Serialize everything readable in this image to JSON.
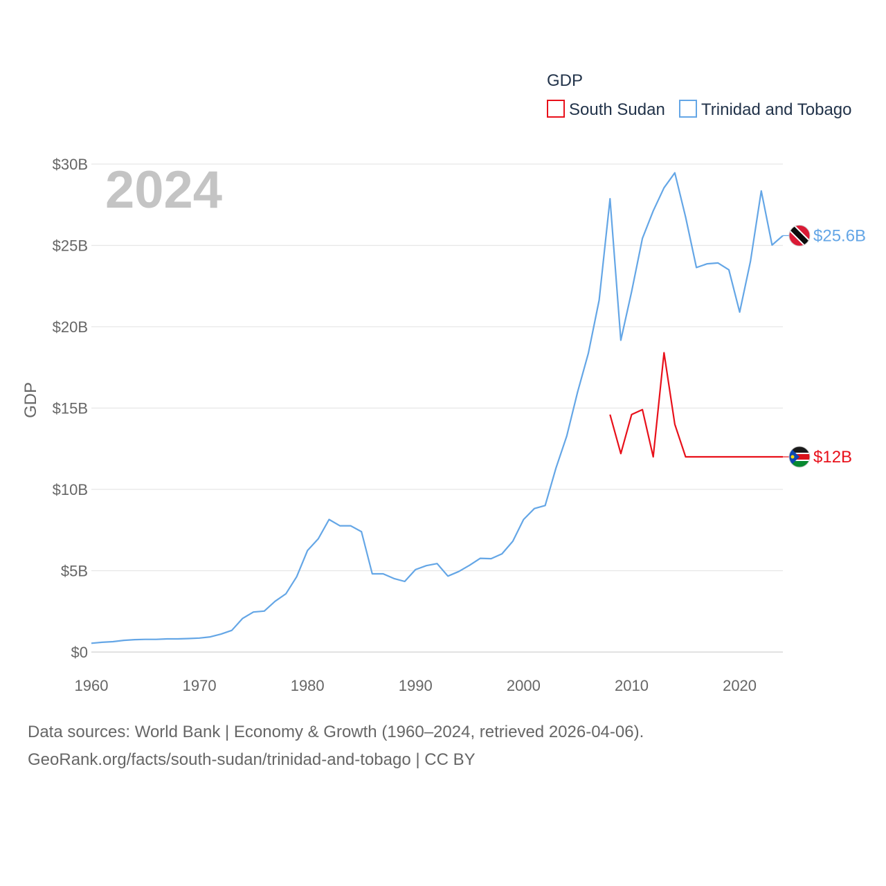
{
  "chart_data": {
    "type": "line",
    "big_year": "2024",
    "ylabel": "GDP",
    "ylim": [
      0,
      30000000000
    ],
    "xlim": [
      1960,
      2024
    ],
    "y_ticks": [
      {
        "value": 0,
        "label": "$0"
      },
      {
        "value": 5000000000,
        "label": "$5B"
      },
      {
        "value": 10000000000,
        "label": "$10B"
      },
      {
        "value": 15000000000,
        "label": "$15B"
      },
      {
        "value": 20000000000,
        "label": "$20B"
      },
      {
        "value": 25000000000,
        "label": "$25B"
      },
      {
        "value": 30000000000,
        "label": "$30B"
      }
    ],
    "x_ticks": [
      {
        "value": 1960,
        "label": "1960"
      },
      {
        "value": 1970,
        "label": "1970"
      },
      {
        "value": 1980,
        "label": "1980"
      },
      {
        "value": 1990,
        "label": "1990"
      },
      {
        "value": 2000,
        "label": "2000"
      },
      {
        "value": 2010,
        "label": "2010"
      },
      {
        "value": 2020,
        "label": "2020"
      }
    ],
    "legend": {
      "title": "GDP",
      "position": "top-right",
      "items": [
        {
          "label": "South Sudan",
          "color": "#e8101a"
        },
        {
          "label": "Trinidad and Tobago",
          "color": "#64a6e6"
        }
      ]
    },
    "series": [
      {
        "name": "Trinidad and Tobago",
        "color": "#64a6e6",
        "end_label": "$25.6B",
        "flag": "trinidad-and-tobago-flag-icon",
        "x": [
          1960,
          1961,
          1962,
          1963,
          1964,
          1965,
          1966,
          1967,
          1968,
          1969,
          1970,
          1971,
          1972,
          1973,
          1974,
          1975,
          1976,
          1977,
          1978,
          1979,
          1980,
          1981,
          1982,
          1983,
          1984,
          1985,
          1986,
          1987,
          1988,
          1989,
          1990,
          1991,
          1992,
          1993,
          1994,
          1995,
          1996,
          1997,
          1998,
          1999,
          2000,
          2001,
          2002,
          2003,
          2004,
          2005,
          2006,
          2007,
          2008,
          2009,
          2010,
          2011,
          2012,
          2013,
          2014,
          2015,
          2016,
          2017,
          2018,
          2019,
          2020,
          2021,
          2022,
          2023,
          2024
        ],
        "values": [
          0.54,
          0.6,
          0.64,
          0.72,
          0.76,
          0.78,
          0.78,
          0.81,
          0.81,
          0.83,
          0.86,
          0.93,
          1.1,
          1.33,
          2.07,
          2.46,
          2.52,
          3.12,
          3.58,
          4.63,
          6.24,
          6.96,
          8.15,
          7.76,
          7.76,
          7.4,
          4.81,
          4.81,
          4.52,
          4.34,
          5.07,
          5.31,
          5.44,
          4.67,
          4.95,
          5.33,
          5.76,
          5.74,
          6.04,
          6.81,
          8.15,
          8.82,
          9.01,
          11.31,
          13.28,
          15.98,
          18.37,
          21.64,
          27.87,
          19.17,
          22.16,
          25.43,
          27.12,
          28.54,
          29.46,
          26.74,
          23.64,
          23.87,
          23.92,
          23.5,
          20.9,
          24.02,
          28.35,
          25.02,
          25.6
        ]
      },
      {
        "name": "South Sudan",
        "color": "#e8101a",
        "end_label": "$12B",
        "flag": "south-sudan-flag-icon",
        "x": [
          2008,
          2009,
          2010,
          2011,
          2012,
          2013,
          2014,
          2015,
          2016,
          2017,
          2018,
          2019,
          2020,
          2021,
          2022,
          2023,
          2024
        ],
        "values": [
          14.6,
          12.2,
          14.6,
          14.9,
          12.0,
          18.4,
          14.0,
          12.0,
          12.0,
          12.0,
          12.0,
          12.0,
          12.0,
          12.0,
          12.0,
          12.0,
          12.0
        ]
      }
    ],
    "value_unit": "billions USD"
  },
  "footer": {
    "line1": "Data sources: World Bank | Economy & Growth (1960–2024, retrieved 2026-04-06).",
    "line2": "GeoRank.org/facts/south-sudan/trinidad-and-tobago | CC BY"
  }
}
